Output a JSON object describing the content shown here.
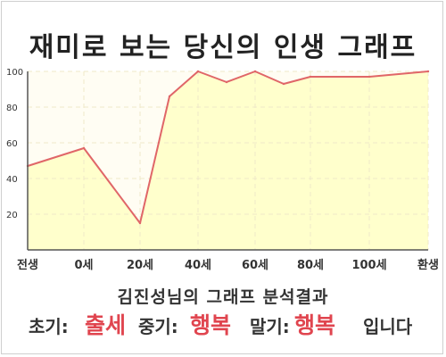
{
  "title": "재미로 보는 당신의 인생 그래프",
  "chart_data": {
    "type": "area",
    "title": "재미로 보는 당신의 인생 그래프",
    "x_ticks": [
      "전생",
      "0세",
      "20세",
      "40세",
      "60세",
      "80세",
      "100세",
      "환생"
    ],
    "y_ticks": [
      "20",
      "40",
      "60",
      "80",
      "100"
    ],
    "ylim": [
      0,
      100
    ],
    "grid": true,
    "series": [
      {
        "points": [
          {
            "x": "전생",
            "y": 47
          },
          {
            "x": "0세",
            "y": 57
          },
          {
            "x": "20세",
            "y": 15
          },
          {
            "x": "30세",
            "y": 86
          },
          {
            "x": "40세",
            "y": 100
          },
          {
            "x": "50세",
            "y": 94
          },
          {
            "x": "60세",
            "y": 100
          },
          {
            "x": "70세",
            "y": 93
          },
          {
            "x": "80세",
            "y": 97
          },
          {
            "x": "100세",
            "y": 97
          },
          {
            "x": "환생",
            "y": 100
          }
        ]
      }
    ],
    "colors": {
      "line": "#e06668",
      "fill": "#ffffcc",
      "axis": "#555555",
      "grid": "#efe9c8"
    }
  },
  "summary": "김진성님의 그래프 분석결과",
  "verdict": {
    "early_label": "초기:",
    "early_value": "출세",
    "mid_label": "중기:",
    "mid_value": "행복",
    "late_label": "말기:",
    "late_value": "행복",
    "suffix": "입니다"
  }
}
